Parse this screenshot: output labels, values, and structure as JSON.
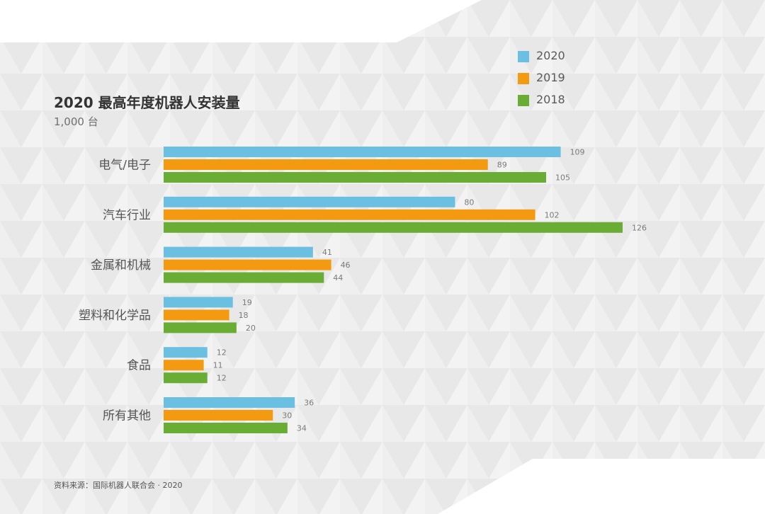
{
  "chart_data": {
    "type": "bar",
    "orientation": "horizontal",
    "title": "2020 最高年度机器人安装量",
    "subtitle": "1,000 台",
    "categories": [
      "电气/电子",
      "汽车行业",
      "金属和机械",
      "塑料和化学品",
      "食品",
      "所有其他"
    ],
    "series": [
      {
        "name": "2020",
        "color": "#6bbfe0",
        "values": [
          109,
          80,
          41,
          19,
          12,
          36
        ]
      },
      {
        "name": "2019",
        "color": "#f39a11",
        "values": [
          89,
          102,
          46,
          18,
          11,
          30
        ]
      },
      {
        "name": "2018",
        "color": "#6aad35",
        "values": [
          105,
          126,
          44,
          20,
          12,
          34
        ]
      }
    ],
    "xlim": [
      0,
      126
    ],
    "grid": false,
    "legend_position": "top-right",
    "source": "资料来源：国际机器人联合会 · 2020"
  }
}
